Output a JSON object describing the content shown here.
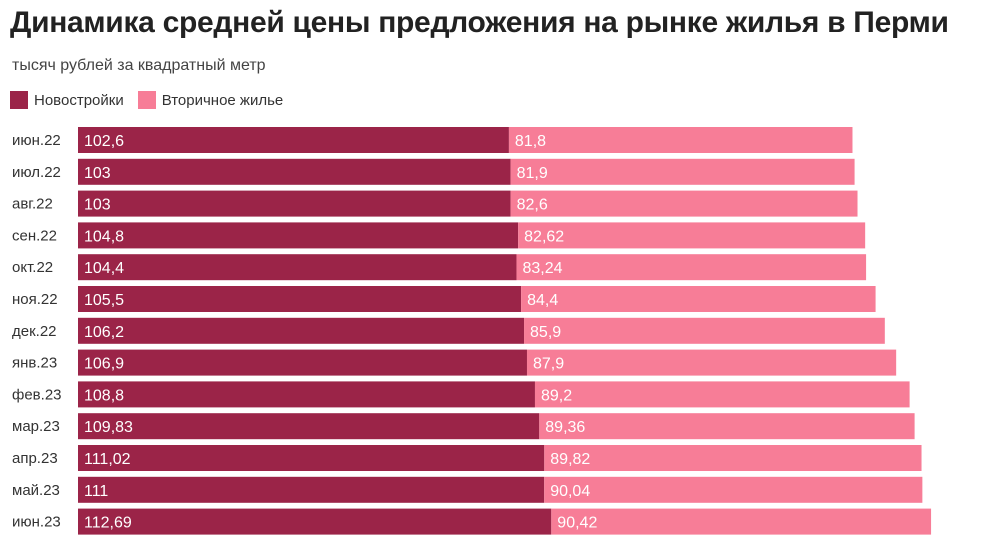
{
  "chart_data": {
    "type": "bar",
    "orientation": "horizontal",
    "stacked": true,
    "title": "Динамика средней цены предложения на рынке жилья в Перми",
    "subtitle": "тысяч рублей за квадратный метр",
    "legend_placement": "top-left",
    "grid": false,
    "categories": [
      "июн.22",
      "июл.22",
      "авг.22",
      "сен.22",
      "окт.22",
      "ноя.22",
      "дек.22",
      "янв.23",
      "фев.23",
      "мар.23",
      "апр.23",
      "май.23",
      "июн.23"
    ],
    "series": [
      {
        "name": "Новостройки",
        "color": "#9b2448",
        "values": [
          102.6,
          103,
          103,
          104.8,
          104.4,
          105.5,
          106.2,
          106.9,
          108.8,
          109.83,
          111.02,
          111,
          112.69
        ],
        "labels": [
          "102,6",
          "103",
          "103",
          "104,8",
          "104,4",
          "105,5",
          "106,2",
          "106,9",
          "108,8",
          "109,83",
          "111,02",
          "111",
          "112,69"
        ]
      },
      {
        "name": "Вторичное жилье",
        "color": "#f77d97",
        "values": [
          81.8,
          81.9,
          82.6,
          82.62,
          83.24,
          84.4,
          85.9,
          87.9,
          89.2,
          89.36,
          89.82,
          90.04,
          90.42
        ],
        "labels": [
          "81,8",
          "81,9",
          "82,6",
          "82,62",
          "83,24",
          "84,4",
          "85,9",
          "87,9",
          "89,2",
          "89,36",
          "89,82",
          "90,04",
          "90,42"
        ]
      }
    ]
  }
}
